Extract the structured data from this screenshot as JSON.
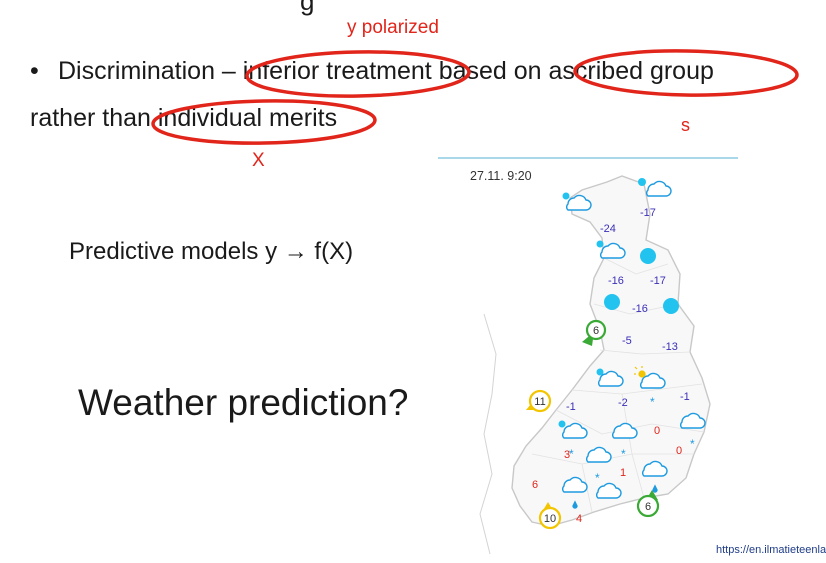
{
  "slide": {
    "title_fragment": "g",
    "bullet_symbol": "•",
    "bullet_line": "Discrimination – inferior treatment based on ascribed group",
    "line2": "rather than individual merits",
    "annotations": {
      "y_polarized": "y polarized",
      "s": "s",
      "x": "X"
    },
    "predictive_models": "Predictive models y → f(X)",
    "weather_question": "Weather prediction?",
    "source_url": "https://en.ilmatieteenla"
  },
  "weather_map": {
    "timestamp": "27.11. 9:20",
    "temperatures": [
      "-17",
      "-24",
      "-16",
      "-17",
      "-16",
      "-5",
      "-13",
      "-1",
      "-2",
      "-1",
      "0",
      "0",
      "3",
      "1",
      "6",
      "4"
    ],
    "wind_badges": [
      "6",
      "11",
      "10",
      "6"
    ],
    "colors": {
      "cold": "#3a2fb8",
      "warm": "#e1251b",
      "snow_blue": "#1e9be0",
      "sun_dot": "#22c3ef",
      "wind_green": "#3aa935",
      "wind_yellow": "#f2c500"
    }
  }
}
